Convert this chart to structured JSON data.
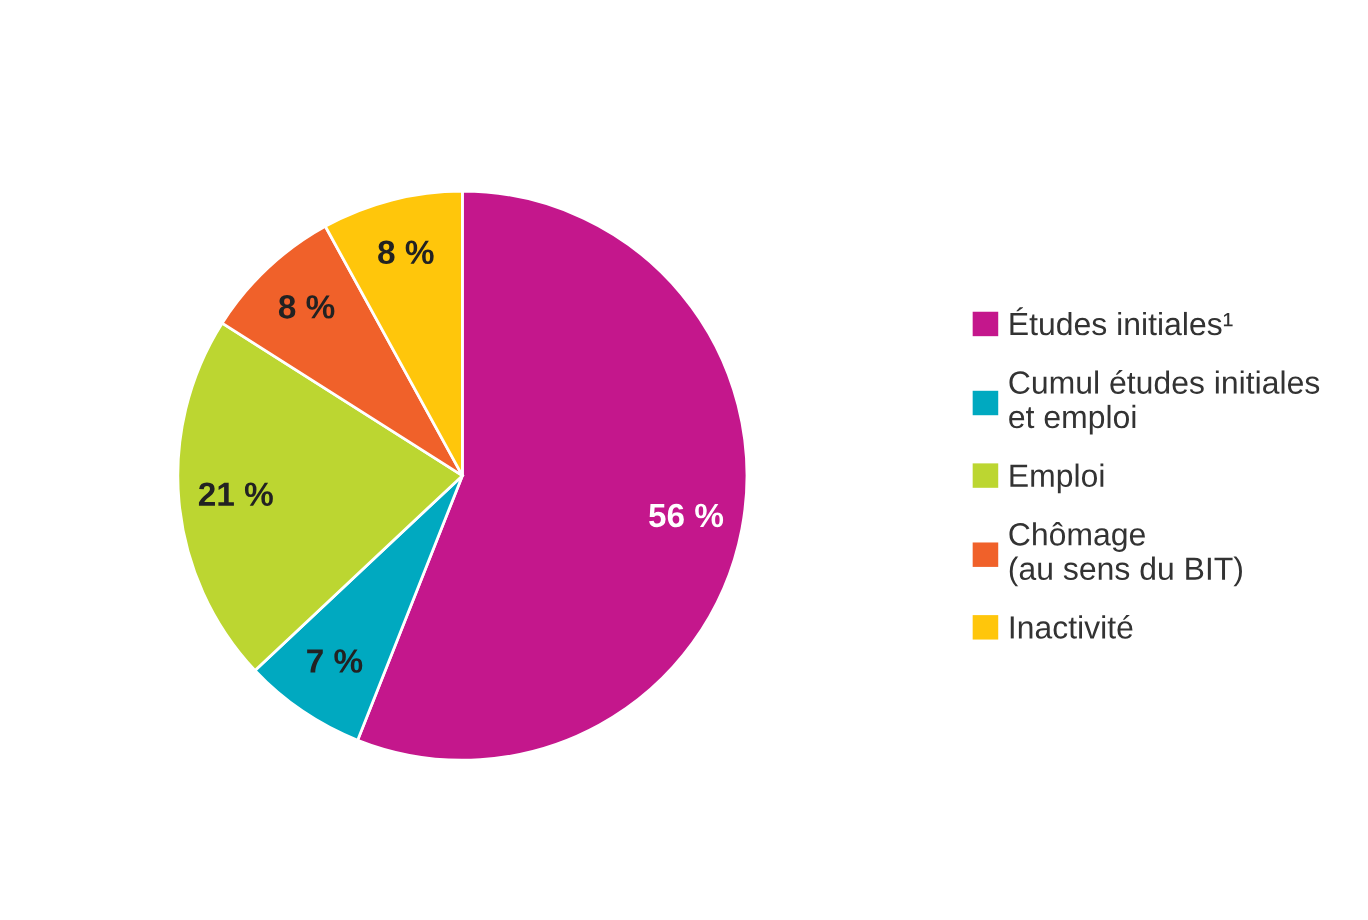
{
  "chart_data": {
    "type": "pie",
    "categories": [
      "Études initiales¹",
      "Cumul études initiales\net emploi",
      "Emploi",
      "Chômage\n(au sens du BIT)",
      "Inactivité"
    ],
    "values": [
      56,
      7,
      21,
      8,
      8
    ],
    "colors": [
      "#c4178c",
      "#00a9c0",
      "#bcd631",
      "#f0612a",
      "#ffc60b"
    ],
    "value_labels": [
      "56 %",
      "7 %",
      "21 %",
      "8 %",
      "8 %"
    ],
    "legend": "right"
  }
}
